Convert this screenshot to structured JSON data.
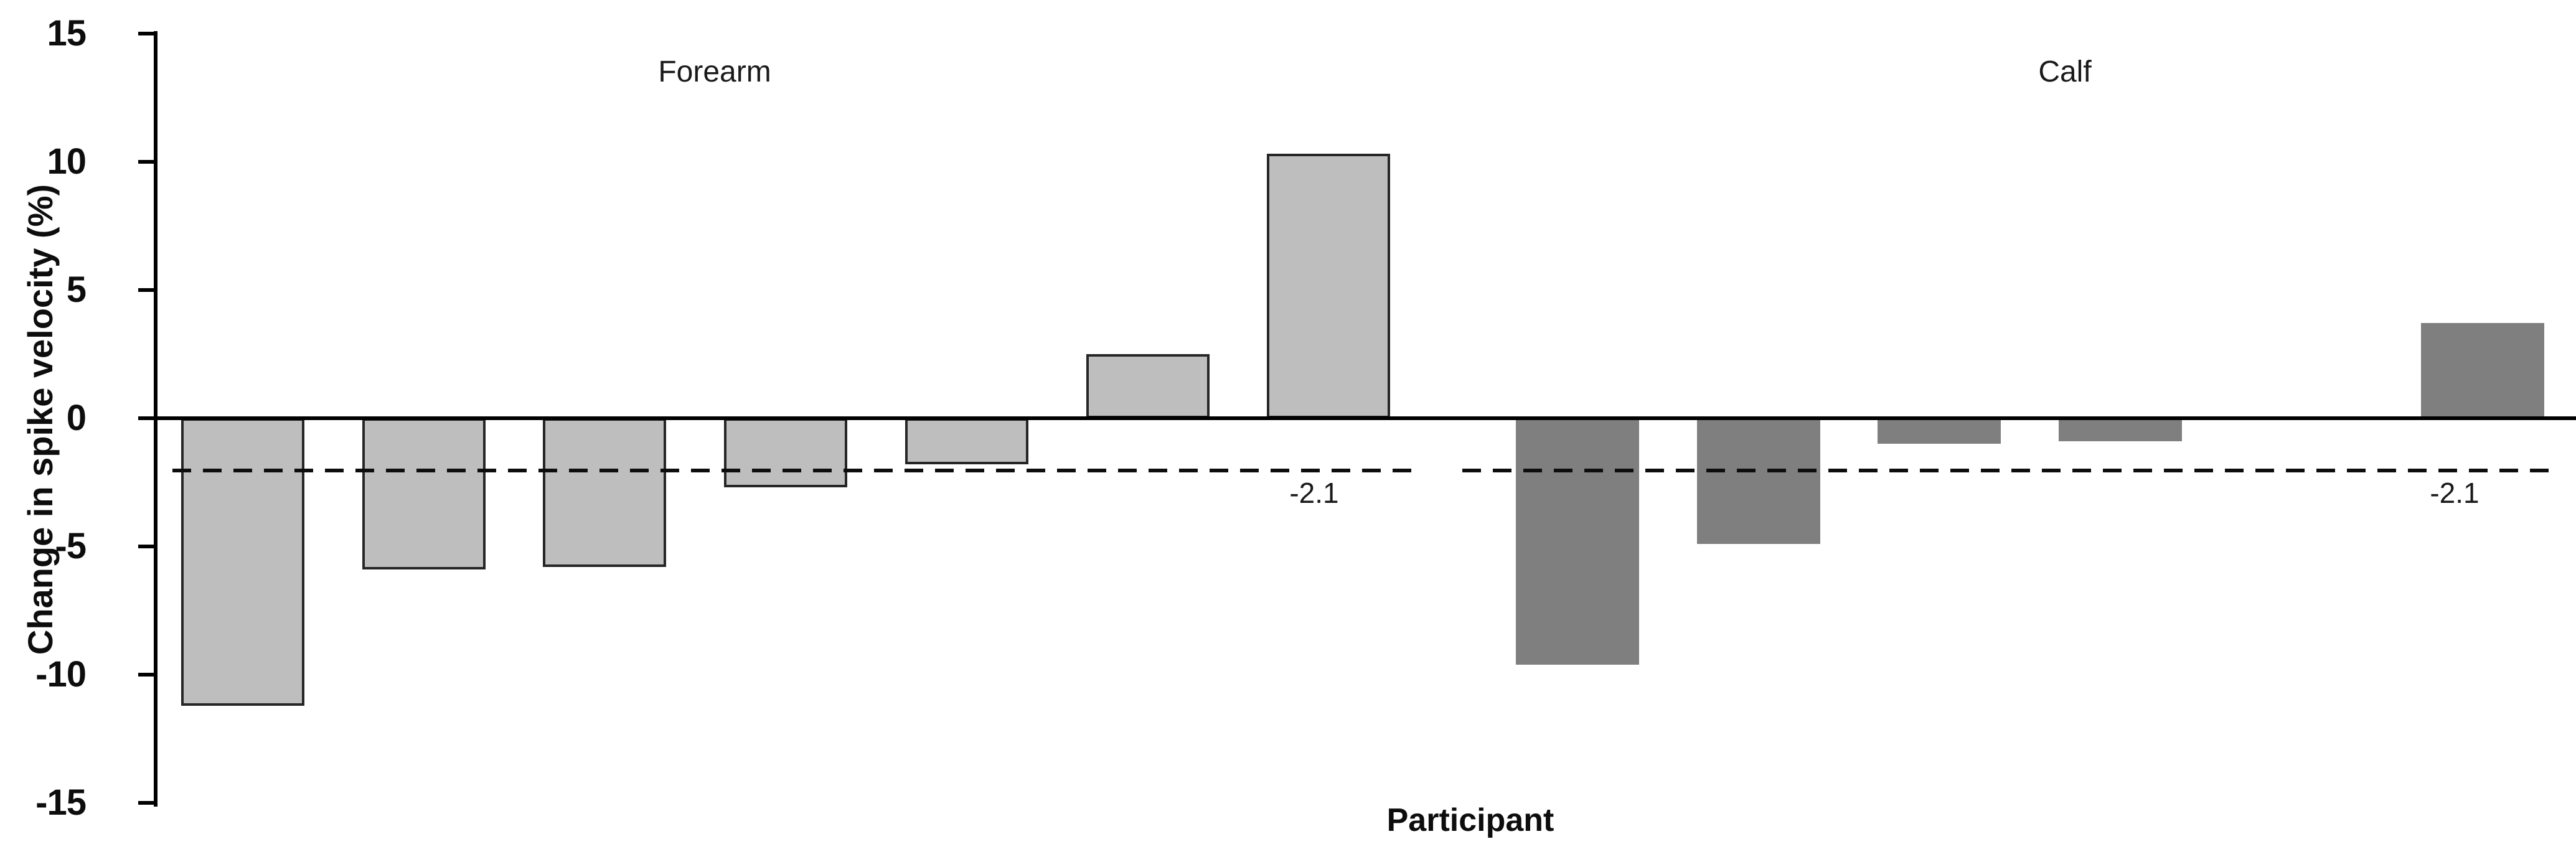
{
  "figure": {
    "y_axis_title": "Change in spike velocity (%)",
    "x_axis_title": "Participant",
    "ytick_labels": [
      "15",
      "10",
      "5",
      "0",
      "-5",
      "-10",
      "-15"
    ]
  },
  "chart_data": {
    "type": "bar",
    "title": "",
    "ylabel": "Change in spike velocity (%)",
    "xlabel": "Participant",
    "ylim": [
      -15,
      15
    ],
    "yticks": [
      15,
      10,
      5,
      0,
      -5,
      -10,
      -15
    ],
    "grid": false,
    "legend_position": "none",
    "group_labels_position": "top-inside",
    "series": [
      {
        "name": "Forearm",
        "fill_color": "#bebebe",
        "border_color": "#262626",
        "values": [
          -11.2,
          -5.9,
          -5.8,
          -2.7,
          -1.8,
          2.5,
          10.3
        ],
        "slots": [
          0,
          1,
          2,
          3,
          4,
          5,
          6
        ]
      },
      {
        "name": "Calf",
        "fill_color": "#7f7f7f",
        "border_color": "none",
        "values": [
          -9.6,
          -4.9,
          -1.0,
          -0.9,
          3.7
        ],
        "slots": [
          0,
          1,
          2,
          3,
          5
        ]
      }
    ],
    "reference_line": {
      "value": -2.1,
      "label": "-2.1",
      "style": "dashed",
      "color": "#0d0d0d",
      "shown_in_both_sections": true
    }
  }
}
